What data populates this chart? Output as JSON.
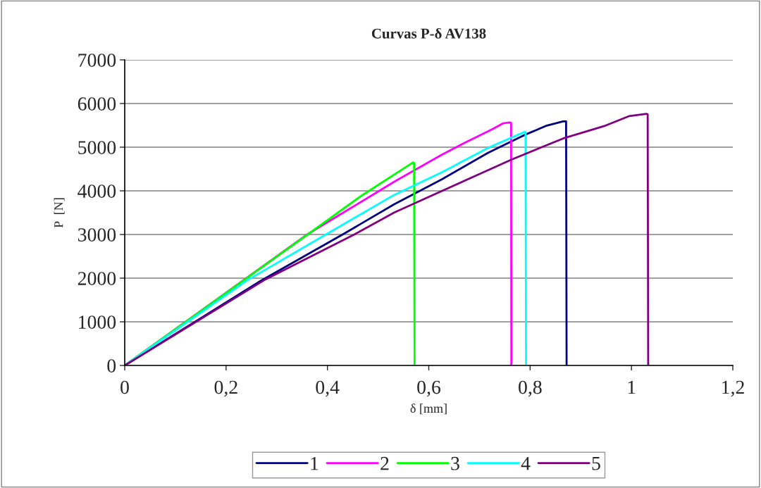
{
  "chart_data": {
    "type": "line",
    "title": "Curvas P-δ AV138",
    "xlabel": "δ [mm]",
    "ylabel": "P  [N]",
    "xlim": [
      0,
      1.2
    ],
    "xticks": [
      0,
      {
        "value": 0.2,
        "label": "0,2"
      },
      {
        "value": 0.4,
        "label": "0,4"
      },
      {
        "value": 0.6,
        "label": "0,6"
      },
      {
        "value": 0.8,
        "label": "0,8"
      },
      1,
      {
        "value": 1.2,
        "label": "1,2"
      }
    ],
    "ylim": [
      0,
      7000
    ],
    "yticks": [
      0,
      1000,
      2000,
      3000,
      4000,
      5000,
      6000,
      7000
    ],
    "grid": "y",
    "legend": "bottom",
    "marker": "none",
    "line_style": "solid",
    "series": [
      {
        "name": "1",
        "color": "#000080",
        "x": [
          0,
          0.268,
          0.43,
          0.532,
          0.625,
          0.717,
          0.789,
          0.833,
          0.865,
          0.871,
          0.872
        ],
        "values": [
          0,
          1935,
          3000,
          3694,
          4258,
          4871,
          5280,
          5495,
          5591,
          5590,
          0
        ]
      },
      {
        "name": "2",
        "color": "#ff00ff",
        "x": [
          0,
          0.36,
          0.532,
          0.625,
          0.671,
          0.726,
          0.747,
          0.759,
          0.7625,
          0.763
        ],
        "values": [
          0,
          3000,
          4210,
          4823,
          5102,
          5414,
          5548,
          5565,
          5560,
          0
        ]
      },
      {
        "name": "3",
        "color": "#00ff00",
        "x": [
          0,
          0.361,
          0.467,
          0.569,
          0.571,
          0.572
        ],
        "values": [
          0,
          3000,
          3887,
          4650,
          4640,
          0
        ]
      },
      {
        "name": "4",
        "color": "#00ffff",
        "x": [
          0,
          0.245,
          0.397,
          0.532,
          0.625,
          0.717,
          0.789,
          0.791,
          0.792
        ],
        "values": [
          0,
          1973,
          3000,
          3909,
          4419,
          4984,
          5349,
          5340,
          0
        ]
      },
      {
        "name": "5",
        "color": "#800080",
        "x": [
          0,
          0.278,
          0.453,
          0.532,
          0.763,
          0.865,
          0.949,
          0.995,
          1.03,
          1.032,
          1.033
        ],
        "values": [
          0,
          1973,
          3000,
          3505,
          4715,
          5199,
          5495,
          5710,
          5763,
          5755,
          0
        ]
      }
    ]
  }
}
